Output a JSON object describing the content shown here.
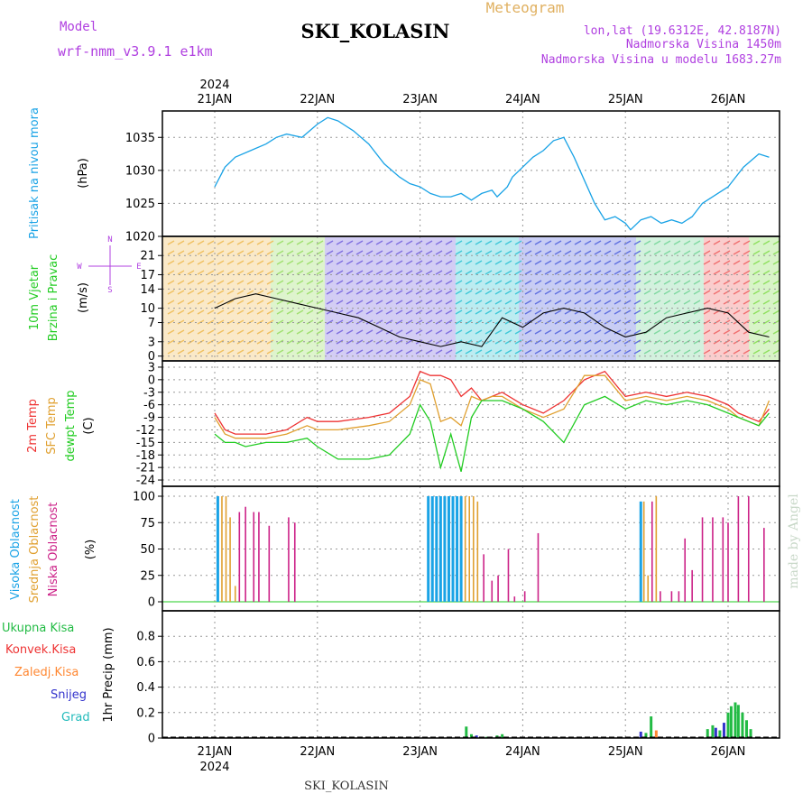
{
  "header": {
    "model_label": "Model",
    "model_name": "wrf-nmm_v3.9.1  e1km",
    "station": "SKI_KOLASIN",
    "product": "Meteogram",
    "coords": "lon,lat (19.6312E, 42.8187N)",
    "elevation": "Nadmorska Visina 1450m",
    "model_elevation": "Nadmorska Visina u modelu 1683.27m",
    "credit": "made by Angel",
    "footer": "SKI_KOLASIN"
  },
  "colors": {
    "pressure": "#1aa3e6",
    "temp2m": "#ee3333",
    "sfc": "#e0a030",
    "dewpt": "#22cc22",
    "cloud_high": "#1aa3e6",
    "cloud_mid": "#e0a030",
    "cloud_low": "#cc2288",
    "precip_total": "#22bb44",
    "precip_conv": "#ee3333",
    "precip_frozen": "#ff8833",
    "precip_snow": "#3333cc",
    "precip_grad": "#22bbbb",
    "compass": "#b040e0"
  },
  "chart_data": [
    {
      "type": "line",
      "panel": "pressure",
      "ylabel_outer": "Pritisak na nivou mora",
      "ylabel_unit": "(hPa)",
      "top_year": "2024",
      "top_dates": [
        "21JAN",
        "22JAN",
        "23JAN",
        "24JAN",
        "25JAN",
        "26JAN"
      ],
      "ylim": [
        1020,
        1039
      ],
      "yticks": [
        "1020",
        "1025",
        "1030",
        "1035"
      ],
      "x_days": [
        0,
        0.1,
        0.2,
        0.35,
        0.5,
        0.6,
        0.7,
        0.85,
        1.0,
        1.1,
        1.2,
        1.35,
        1.5,
        1.65,
        1.8,
        1.9,
        2.0,
        2.1,
        2.2,
        2.3,
        2.4,
        2.5,
        2.6,
        2.7,
        2.75,
        2.85,
        2.9,
        3.0,
        3.1,
        3.2,
        3.3,
        3.4,
        3.5,
        3.6,
        3.7,
        3.8,
        3.9,
        4.0,
        4.05,
        4.15,
        4.25,
        4.35,
        4.45,
        4.55,
        4.65,
        4.75,
        4.85,
        5.0,
        5.15,
        5.3,
        5.4
      ],
      "series": [
        {
          "name": "Pritisak na nivou mora",
          "values": [
            1027.5,
            1030.5,
            1032.0,
            1033.0,
            1034.0,
            1035.0,
            1035.5,
            1035.0,
            1037.0,
            1038.0,
            1037.5,
            1036.0,
            1034.0,
            1031.0,
            1029.0,
            1028.0,
            1027.5,
            1026.5,
            1026.0,
            1026.0,
            1026.5,
            1025.5,
            1026.5,
            1027.0,
            1026.0,
            1027.5,
            1029.0,
            1030.5,
            1032.0,
            1033.0,
            1034.5,
            1035.0,
            1032.0,
            1028.5,
            1025.0,
            1022.5,
            1023.0,
            1022.0,
            1021.0,
            1022.5,
            1023.0,
            1022.0,
            1022.5,
            1022.0,
            1023.0,
            1025.0,
            1026.0,
            1027.5,
            1030.5,
            1032.5,
            1032.0
          ]
        }
      ]
    },
    {
      "type": "line",
      "panel": "wind",
      "ylabel_outer_1": "10m Vjetar",
      "ylabel_outer_2": "Brzina i Pravac",
      "ylabel_unit": "(m/s)",
      "compass": {
        "north": "N",
        "east": "E",
        "south": "S",
        "west": "W"
      },
      "ylim": [
        -1,
        25
      ],
      "yticks": [
        "0",
        "3",
        "7",
        "10",
        "14",
        "17",
        "21"
      ],
      "x_days": [
        0,
        0.2,
        0.4,
        0.6,
        0.8,
        1.0,
        1.2,
        1.4,
        1.6,
        1.8,
        2.0,
        2.2,
        2.4,
        2.6,
        2.8,
        3.0,
        3.2,
        3.4,
        3.6,
        3.8,
        4.0,
        4.2,
        4.4,
        4.6,
        4.8,
        5.0,
        5.2,
        5.4
      ],
      "series": [
        {
          "name": "10m Vjetar",
          "values": [
            10,
            12,
            13,
            12,
            11,
            10,
            9,
            8,
            6,
            4,
            3,
            2,
            3,
            2,
            8,
            6,
            9,
            10,
            9,
            6,
            4,
            5,
            8,
            9,
            10,
            9,
            5,
            4
          ]
        }
      ]
    },
    {
      "type": "line",
      "panel": "temperature",
      "ylabel_outer_1": "2m Temp",
      "ylabel_outer_2": "SFC Temp",
      "ylabel_outer_3": "dewpt Temp",
      "ylabel_unit": "(C)",
      "ylim": [
        -24,
        3
      ],
      "yticks": [
        "3",
        "0",
        "-3",
        "-6",
        "-9",
        "-12",
        "-15",
        "-18",
        "-21",
        "-24"
      ],
      "x_days": [
        0,
        0.1,
        0.2,
        0.3,
        0.5,
        0.7,
        0.9,
        1.0,
        1.2,
        1.5,
        1.7,
        1.9,
        2.0,
        2.1,
        2.2,
        2.3,
        2.4,
        2.5,
        2.6,
        2.7,
        2.8,
        3.0,
        3.2,
        3.4,
        3.6,
        3.8,
        4.0,
        4.2,
        4.4,
        4.6,
        4.8,
        5.0,
        5.1,
        5.2,
        5.3,
        5.4
      ],
      "series": [
        {
          "name": "2m Temp",
          "values": [
            -8,
            -12,
            -13,
            -13,
            -13,
            -12,
            -9,
            -10,
            -10,
            -9,
            -8,
            -4,
            2,
            1,
            1,
            0,
            -4,
            -2,
            -5,
            -4,
            -3,
            -6,
            -8,
            -5,
            0,
            2,
            -4,
            -3,
            -4,
            -3,
            -4,
            -6,
            -8,
            -9,
            -10,
            -7
          ]
        },
        {
          "name": "SFC Temp",
          "values": [
            -9,
            -13,
            -14,
            -14,
            -14,
            -13,
            -11,
            -12,
            -12,
            -11,
            -10,
            -6,
            0,
            -1,
            -10,
            -9,
            -11,
            -4,
            -5,
            -4,
            -4,
            -7,
            -9,
            -7,
            1,
            1,
            -5,
            -4,
            -5,
            -4,
            -5,
            -7,
            -9,
            -10,
            -11,
            -5
          ]
        },
        {
          "name": "dewpt Temp",
          "values": [
            -13,
            -15,
            -15,
            -16,
            -15,
            -15,
            -14,
            -16,
            -19,
            -19,
            -18,
            -13,
            -6,
            -10,
            -21,
            -13,
            -22,
            -9,
            -5,
            -5,
            -5,
            -7,
            -10,
            -15,
            -6,
            -4,
            -7,
            -5,
            -6,
            -5,
            -6,
            -8,
            -9,
            -10,
            -11,
            -8
          ]
        }
      ]
    },
    {
      "type": "bar",
      "panel": "cloud",
      "ylabel_outer_1": "Visoka Oblacnost",
      "ylabel_outer_2": "Srednja Oblacnost",
      "ylabel_outer_3": "Niska Oblacnost",
      "ylabel_unit": "(%)",
      "ylim": [
        0,
        100
      ],
      "yticks": [
        "100",
        "75",
        "50",
        "25",
        "0"
      ],
      "bars": [
        {
          "x": 0.03,
          "series": "high",
          "value": 100
        },
        {
          "x": 0.07,
          "series": "mid",
          "value": 100
        },
        {
          "x": 0.11,
          "series": "mid",
          "value": 100
        },
        {
          "x": 0.15,
          "series": "mid",
          "value": 80
        },
        {
          "x": 0.2,
          "series": "mid",
          "value": 15
        },
        {
          "x": 0.24,
          "series": "low",
          "value": 85
        },
        {
          "x": 0.3,
          "series": "low",
          "value": 90
        },
        {
          "x": 0.38,
          "series": "low",
          "value": 85
        },
        {
          "x": 0.43,
          "series": "low",
          "value": 85
        },
        {
          "x": 0.53,
          "series": "low",
          "value": 72
        },
        {
          "x": 0.72,
          "series": "low",
          "value": 80
        },
        {
          "x": 0.78,
          "series": "low",
          "value": 75
        },
        {
          "x": 2.08,
          "series": "high",
          "value": 100
        },
        {
          "x": 2.12,
          "series": "high",
          "value": 100
        },
        {
          "x": 2.16,
          "series": "high",
          "value": 100
        },
        {
          "x": 2.2,
          "series": "high",
          "value": 100
        },
        {
          "x": 2.24,
          "series": "high",
          "value": 100
        },
        {
          "x": 2.28,
          "series": "high",
          "value": 100
        },
        {
          "x": 2.32,
          "series": "high",
          "value": 100
        },
        {
          "x": 2.36,
          "series": "high",
          "value": 100
        },
        {
          "x": 2.4,
          "series": "high",
          "value": 100
        },
        {
          "x": 2.44,
          "series": "mid",
          "value": 100
        },
        {
          "x": 2.48,
          "series": "mid",
          "value": 100
        },
        {
          "x": 2.52,
          "series": "mid",
          "value": 100
        },
        {
          "x": 2.56,
          "series": "mid",
          "value": 95
        },
        {
          "x": 2.62,
          "series": "low",
          "value": 45
        },
        {
          "x": 2.7,
          "series": "low",
          "value": 20
        },
        {
          "x": 2.76,
          "series": "low",
          "value": 25
        },
        {
          "x": 2.86,
          "series": "low",
          "value": 50
        },
        {
          "x": 2.92,
          "series": "low",
          "value": 5
        },
        {
          "x": 3.02,
          "series": "low",
          "value": 10
        },
        {
          "x": 3.15,
          "series": "low",
          "value": 65
        },
        {
          "x": 4.15,
          "series": "high",
          "value": 95
        },
        {
          "x": 4.18,
          "series": "mid",
          "value": 95
        },
        {
          "x": 4.22,
          "series": "mid",
          "value": 25
        },
        {
          "x": 4.26,
          "series": "low",
          "value": 95
        },
        {
          "x": 4.3,
          "series": "mid",
          "value": 100
        },
        {
          "x": 4.34,
          "series": "low",
          "value": 10
        },
        {
          "x": 4.45,
          "series": "low",
          "value": 10
        },
        {
          "x": 4.52,
          "series": "low",
          "value": 10
        },
        {
          "x": 4.58,
          "series": "low",
          "value": 60
        },
        {
          "x": 4.65,
          "series": "low",
          "value": 30
        },
        {
          "x": 4.75,
          "series": "low",
          "value": 80
        },
        {
          "x": 4.85,
          "series": "low",
          "value": 80
        },
        {
          "x": 4.95,
          "series": "low",
          "value": 80
        },
        {
          "x": 5.0,
          "series": "low",
          "value": 75
        },
        {
          "x": 5.1,
          "series": "low",
          "value": 100
        },
        {
          "x": 5.2,
          "series": "low",
          "value": 100
        },
        {
          "x": 5.35,
          "series": "low",
          "value": 70
        }
      ]
    },
    {
      "type": "bar",
      "panel": "precip",
      "legend": [
        "Ukupna Kisa",
        "Konvek.Kisa",
        "Zaledj.Kisa",
        "Snijeg",
        "Grad"
      ],
      "ylabel_unit": "1hr Precip (mm)",
      "ylim": [
        0,
        1.0
      ],
      "yticks": [
        "0.8",
        "0.6",
        "0.4",
        "0.2",
        "0"
      ],
      "bottom_dates": [
        "21JAN",
        "22JAN",
        "23JAN",
        "24JAN",
        "25JAN",
        "26JAN"
      ],
      "bottom_year": "2024",
      "bars": [
        {
          "x": 0.3,
          "series": "total",
          "value": 0.005
        },
        {
          "x": 2.45,
          "series": "total",
          "value": 0.09
        },
        {
          "x": 2.5,
          "series": "total",
          "value": 0.03
        },
        {
          "x": 2.55,
          "series": "snow",
          "value": 0.02
        },
        {
          "x": 2.65,
          "series": "total",
          "value": 0.01
        },
        {
          "x": 2.75,
          "series": "total",
          "value": 0.02
        },
        {
          "x": 2.8,
          "series": "total",
          "value": 0.03
        },
        {
          "x": 2.85,
          "series": "snow",
          "value": 0.01
        },
        {
          "x": 4.15,
          "series": "snow",
          "value": 0.05
        },
        {
          "x": 4.2,
          "series": "total",
          "value": 0.04
        },
        {
          "x": 4.25,
          "series": "total",
          "value": 0.17
        },
        {
          "x": 4.3,
          "series": "frozen",
          "value": 0.06
        },
        {
          "x": 4.8,
          "series": "total",
          "value": 0.07
        },
        {
          "x": 4.85,
          "series": "total",
          "value": 0.1
        },
        {
          "x": 4.88,
          "series": "snow",
          "value": 0.08
        },
        {
          "x": 4.92,
          "series": "total",
          "value": 0.06
        },
        {
          "x": 4.96,
          "series": "snow",
          "value": 0.12
        },
        {
          "x": 5.0,
          "series": "total",
          "value": 0.2
        },
        {
          "x": 5.03,
          "series": "total",
          "value": 0.25
        },
        {
          "x": 5.07,
          "series": "total",
          "value": 0.28
        },
        {
          "x": 5.1,
          "series": "total",
          "value": 0.26
        },
        {
          "x": 5.14,
          "series": "total",
          "value": 0.2
        },
        {
          "x": 5.18,
          "series": "total",
          "value": 0.14
        },
        {
          "x": 5.22,
          "series": "total",
          "value": 0.07
        }
      ]
    }
  ]
}
